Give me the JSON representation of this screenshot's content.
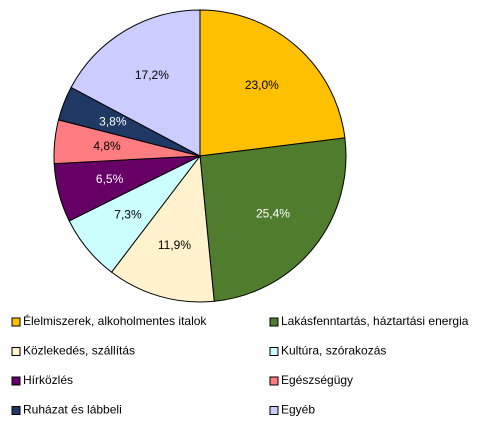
{
  "chart_data": {
    "type": "pie",
    "categories": [
      "Élelmiszerek, alkoholmentes italok",
      "Lakásfenntartás, háztartási energia",
      "Közlekedés, szállítás",
      "Kultúra, szórakozás",
      "Hírközlés",
      "Egészségügy",
      "Ruházat és lábbeli",
      "Egyéb"
    ],
    "values": [
      23.0,
      25.4,
      11.9,
      7.3,
      6.5,
      4.8,
      3.8,
      17.2
    ],
    "value_labels": [
      "23,0%",
      "25,4%",
      "11,9%",
      "7,3%",
      "6,5%",
      "4,8%",
      "3,8%",
      "17,2%"
    ],
    "colors": [
      "#FFC000",
      "#4F7D2D",
      "#FFF2CC",
      "#CCFFFF",
      "#660066",
      "#FF7C80",
      "#1F3864",
      "#CCCCFF"
    ],
    "legend": "bottom"
  }
}
